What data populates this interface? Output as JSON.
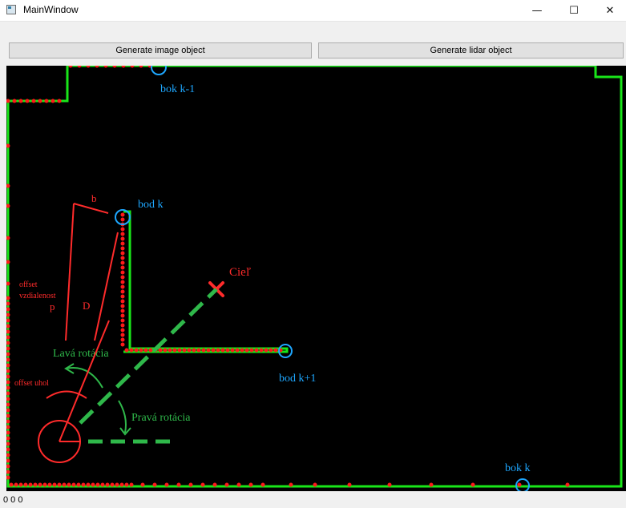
{
  "window": {
    "title": "MainWindow"
  },
  "window_controls": {
    "minimize": "—",
    "maximize": "☐",
    "close": "✕"
  },
  "toolbar": {
    "generate_image_label": "Generate image object",
    "generate_lidar_label": "Generate lidar object"
  },
  "map": {
    "labels": {
      "bok_k_minus_1": "bok k-1",
      "bod_k": "bod k",
      "bod_k_plus_1": "bod k+1",
      "bok_k": "bok k",
      "ciel": "Cieľ",
      "b": "b",
      "offset_vzdialenost_1": "offset",
      "offset_vzdialenost_2": "vzdialenost",
      "p": "p",
      "d": "D",
      "lava_rotacia": "Lavá rotácia",
      "prava_rotacia": "Pravá rotácia",
      "offset_uhol": "offset uhol"
    },
    "colors": {
      "background": "#000000",
      "wall": "#19e619",
      "lidar_points": "#ff1a1a",
      "highlight": "#1ea7ff",
      "annotation_red": "#ff2b2b",
      "annotation_green": "#2fb84a"
    }
  },
  "status": {
    "text": "0 0 0"
  }
}
